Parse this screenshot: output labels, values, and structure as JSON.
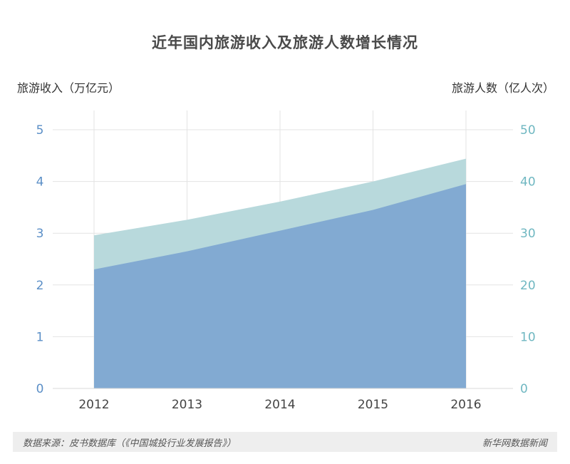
{
  "title": "近年国内旅游收入及旅游人数增长情况",
  "footer": {
    "source": "数据来源：皮书数据库（《中国城投行业发展报告》）",
    "brand": "新华网数据新闻"
  },
  "colors": {
    "revenue_fill": "#82aad2",
    "visitors_fill": "#b8d9dc",
    "left_tick": "#5b8fc7",
    "right_tick": "#6fb7c1",
    "grid": "#e3e3e3"
  },
  "chart_data": {
    "type": "area",
    "x": [
      "2012",
      "2013",
      "2014",
      "2015",
      "2016"
    ],
    "ylabel": "旅游收入（万亿元）",
    "ylabel_right": "旅游人数（亿人次）",
    "ylim": [
      0,
      5
    ],
    "ylim_right": [
      0,
      50
    ],
    "yticks": [
      "0",
      "1",
      "2",
      "3",
      "4",
      "5"
    ],
    "yticks_right": [
      "0",
      "10",
      "20",
      "30",
      "40",
      "50"
    ],
    "grid": true,
    "series": [
      {
        "axis": "right",
        "values": [
          29.6,
          32.6,
          36.1,
          40.0,
          44.4
        ]
      },
      {
        "axis": "left",
        "values": [
          2.3,
          2.65,
          3.05,
          3.45,
          3.95
        ]
      }
    ]
  }
}
